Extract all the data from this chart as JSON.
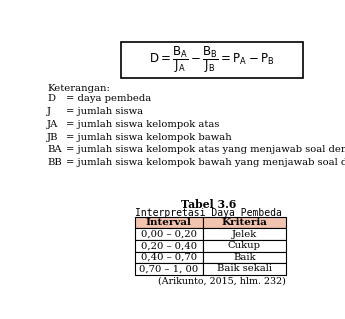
{
  "title": "Tabel 3.6",
  "subtitle": "Interpretasi Daya Pembeda",
  "keterangan_label": "Keterangan:",
  "items": [
    [
      "D",
      "= daya pembeda"
    ],
    [
      "J",
      "= jumlah siswa"
    ],
    [
      "JA",
      "= jumlah siswa kelompok atas"
    ],
    [
      "JB",
      "= jumlah siswa kelompok bawah"
    ],
    [
      "BA",
      "= jumlah siswa kelompok atas yang menjawab soal dengan benar"
    ],
    [
      "BB",
      "= jumlah siswa kelompok bawah yang menjawab soal dengan benar"
    ]
  ],
  "col_headers": [
    "Interval",
    "Kriteria"
  ],
  "table_data": [
    [
      "0,00 – 0,20",
      "Jelek"
    ],
    [
      "0,20 – 0,40",
      "Cukup"
    ],
    [
      "0,40 – 0,70",
      "Baik"
    ],
    [
      "0,70 – 1, 00",
      "Baik sekali"
    ]
  ],
  "citation": "(Arikunto, 2015, hlm. 232)",
  "header_bg": "#f2c4b0",
  "text_color": "#000000",
  "bg_color": "#ffffff",
  "font_family": "serif"
}
